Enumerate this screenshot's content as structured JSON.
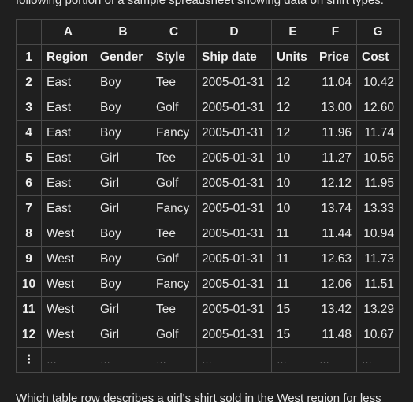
{
  "intro_text": "following portion of a sample spreadsheet showing data on shirt types:",
  "outro_text": "Which table row describes a girl's shirt sold in the West region for less",
  "columns": [
    "A",
    "B",
    "C",
    "D",
    "E",
    "F",
    "G"
  ],
  "header_row": {
    "num": "1",
    "cells": [
      "Region",
      "Gender",
      "Style",
      "Ship date",
      "Units",
      "Price",
      "Cost"
    ]
  },
  "rows": [
    {
      "num": "2",
      "cells": [
        "East",
        "Boy",
        "Tee",
        "2005-01-31",
        "12",
        "11.04",
        "10.42"
      ]
    },
    {
      "num": "3",
      "cells": [
        "East",
        "Boy",
        "Golf",
        "2005-01-31",
        "12",
        "13.00",
        "12.60"
      ]
    },
    {
      "num": "4",
      "cells": [
        "East",
        "Boy",
        "Fancy",
        "2005-01-31",
        "12",
        "11.96",
        "11.74"
      ]
    },
    {
      "num": "5",
      "cells": [
        "East",
        "Girl",
        "Tee",
        "2005-01-31",
        "10",
        "11.27",
        "10.56"
      ]
    },
    {
      "num": "6",
      "cells": [
        "East",
        "Girl",
        "Golf",
        "2005-01-31",
        "10",
        "12.12",
        "11.95"
      ]
    },
    {
      "num": "7",
      "cells": [
        "East",
        "Girl",
        "Fancy",
        "2005-01-31",
        "10",
        "13.74",
        "13.33"
      ]
    },
    {
      "num": "8",
      "cells": [
        "West",
        "Boy",
        "Tee",
        "2005-01-31",
        "11",
        "11.44",
        "10.94"
      ]
    },
    {
      "num": "9",
      "cells": [
        "West",
        "Boy",
        "Golf",
        "2005-01-31",
        "11",
        "12.63",
        "11.73"
      ]
    },
    {
      "num": "10",
      "cells": [
        "West",
        "Boy",
        "Fancy",
        "2005-01-31",
        "11",
        "12.06",
        "11.51"
      ]
    },
    {
      "num": "11",
      "cells": [
        "West",
        "Girl",
        "Tee",
        "2005-01-31",
        "15",
        "13.42",
        "13.29"
      ]
    },
    {
      "num": "12",
      "cells": [
        "West",
        "Girl",
        "Golf",
        "2005-01-31",
        "15",
        "11.48",
        "10.67"
      ]
    }
  ],
  "ellipsis_row": {
    "num": "⋮",
    "cells": [
      "…",
      "…",
      "…",
      "…",
      "…",
      "…",
      "…"
    ]
  }
}
